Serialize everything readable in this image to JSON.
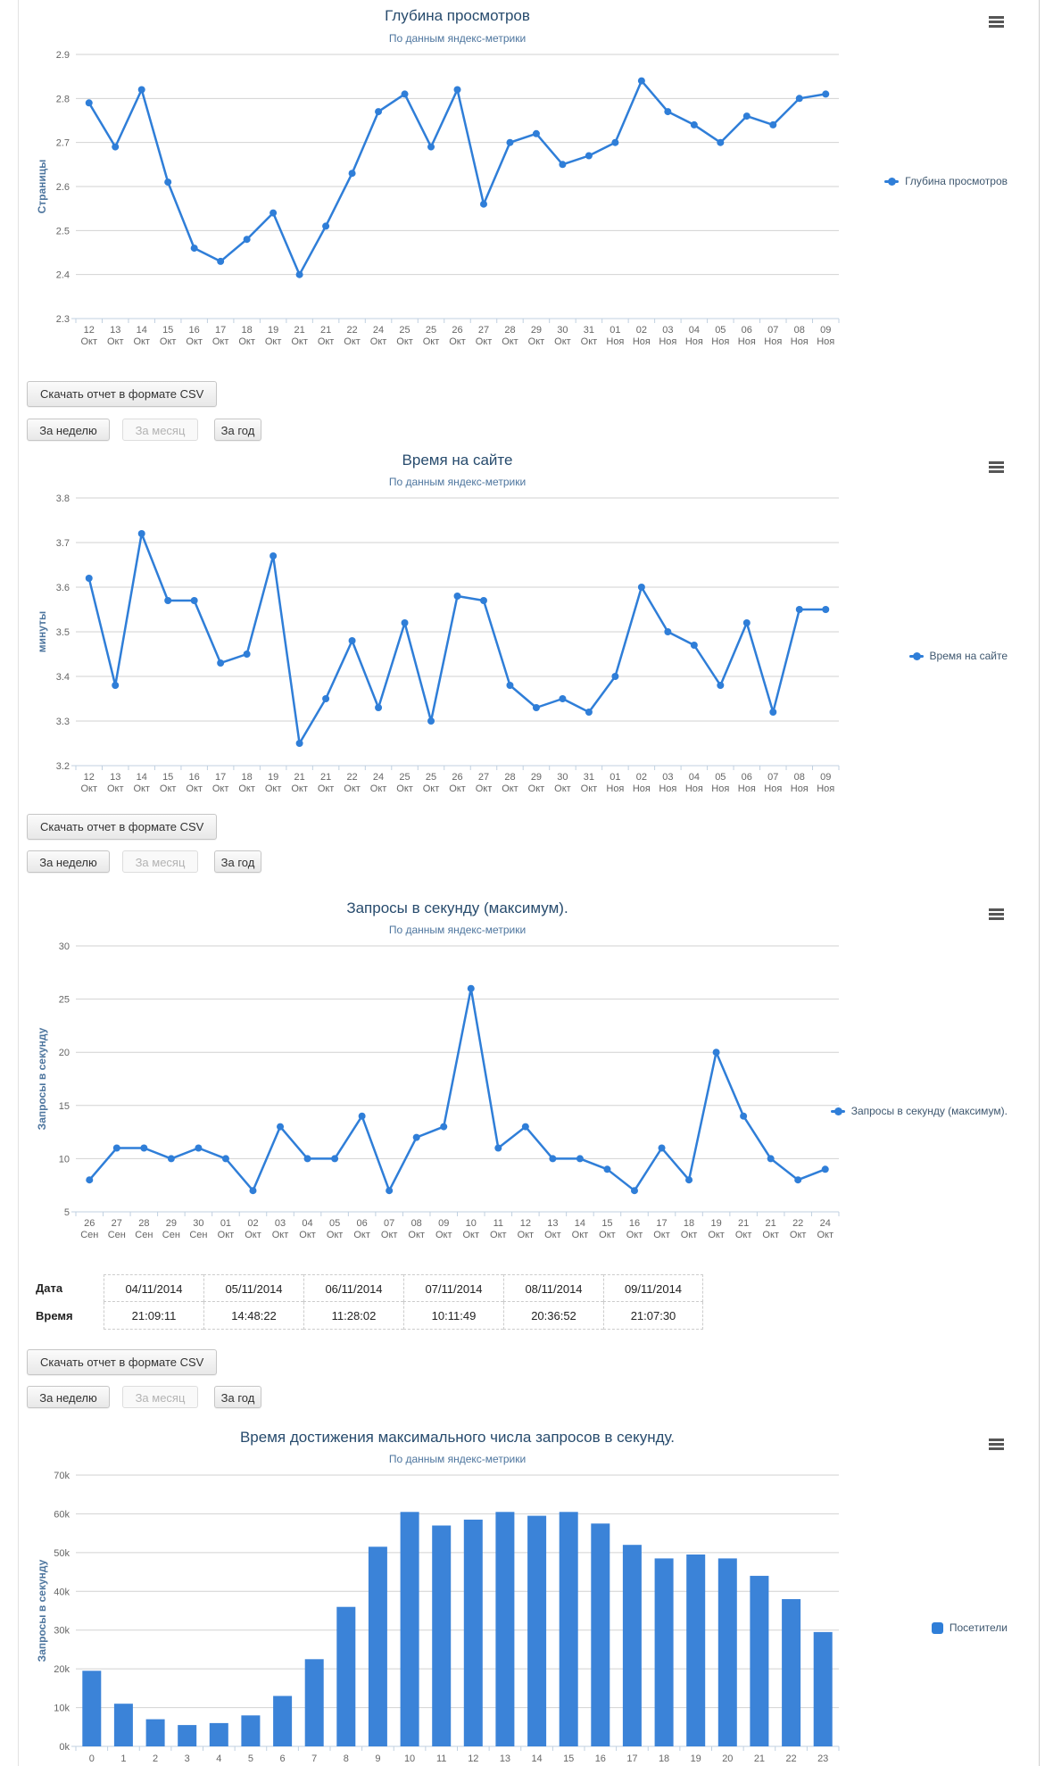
{
  "colors": {
    "series_line": "#2f7ed8",
    "series_bar": "#3b83d8",
    "grid": "#d2d2d2",
    "axis": "#c0d0e0",
    "tick_label": "#666666",
    "title": "#274b6d",
    "subtitle": "#4d759e",
    "legend_text": "#3e576f"
  },
  "icons": {
    "chart_menu": "hamburger-menu-icon",
    "line_legend_marker": "line-with-dot-marker-icon",
    "column_legend_marker": "rounded-square-marker-icon"
  },
  "buttons": {
    "csv": "Скачать отчет в формате CSV",
    "week": "За неделю",
    "month": "За месяц",
    "year": "За год"
  },
  "table": {
    "rows": [
      {
        "label": "Дата",
        "cells": [
          "04/11/2014",
          "05/11/2014",
          "06/11/2014",
          "07/11/2014",
          "08/11/2014",
          "09/11/2014"
        ]
      },
      {
        "label": "Время",
        "cells": [
          "21:09:11",
          "14:48:22",
          "11:28:02",
          "10:11:49",
          "20:36:52",
          "21:07:30"
        ]
      }
    ]
  },
  "chart_data": [
    {
      "type": "line",
      "title": "Глубина просмотров",
      "subtitle": "По данным яндекс-метрики",
      "y_axis_title": "Страницы",
      "legend_label": "Глубина просмотров",
      "y_min": 2.3,
      "y_max": 2.9,
      "y_tick_labels": [
        "2.9",
        "2.8",
        "2.7",
        "2.6",
        "2.5",
        "2.4",
        "2.3"
      ],
      "grid": true,
      "legend_position": "right",
      "categories": [
        "12 Окт",
        "13 Окт",
        "14 Окт",
        "15 Окт",
        "16 Окт",
        "17 Окт",
        "18 Окт",
        "19 Окт",
        "21 Окт",
        "21 Окт",
        "22 Окт",
        "24 Окт",
        "25 Окт",
        "25 Окт",
        "26 Окт",
        "27 Окт",
        "28 Окт",
        "29 Окт",
        "30 Окт",
        "31 Окт",
        "01 Ноя",
        "02 Ноя",
        "03 Ноя",
        "04 Ноя",
        "05 Ноя",
        "06 Ноя",
        "07 Ноя",
        "08 Ноя",
        "09 Ноя"
      ],
      "values": [
        2.79,
        2.69,
        2.82,
        2.61,
        2.46,
        2.43,
        2.48,
        2.54,
        2.4,
        2.51,
        2.63,
        2.77,
        2.81,
        2.69,
        2.82,
        2.56,
        2.7,
        2.72,
        2.65,
        2.67,
        2.7,
        2.84,
        2.77,
        2.74,
        2.7,
        2.76,
        2.74,
        2.8,
        2.81
      ]
    },
    {
      "type": "line",
      "title": "Время на сайте",
      "subtitle": "По данным яндекс-метрики",
      "y_axis_title": "минуты",
      "legend_label": "Время на сайте",
      "y_min": 3.2,
      "y_max": 3.8,
      "y_tick_labels": [
        "3.8",
        "3.7",
        "3.6",
        "3.5",
        "3.4",
        "3.3",
        "3.2"
      ],
      "grid": true,
      "legend_position": "right",
      "categories": [
        "12 Окт",
        "13 Окт",
        "14 Окт",
        "15 Окт",
        "16 Окт",
        "17 Окт",
        "18 Окт",
        "19 Окт",
        "21 Окт",
        "21 Окт",
        "22 Окт",
        "24 Окт",
        "25 Окт",
        "25 Окт",
        "26 Окт",
        "27 Окт",
        "28 Окт",
        "29 Окт",
        "30 Окт",
        "31 Окт",
        "01 Ноя",
        "02 Ноя",
        "03 Ноя",
        "04 Ноя",
        "05 Ноя",
        "06 Ноя",
        "07 Ноя",
        "08 Ноя",
        "09 Ноя"
      ],
      "values": [
        3.62,
        3.38,
        3.72,
        3.57,
        3.57,
        3.43,
        3.45,
        3.67,
        3.25,
        3.35,
        3.48,
        3.33,
        3.52,
        3.3,
        3.58,
        3.57,
        3.38,
        3.33,
        3.35,
        3.32,
        3.4,
        3.6,
        3.5,
        3.47,
        3.38,
        3.52,
        3.32,
        3.55,
        3.55
      ]
    },
    {
      "type": "line",
      "title": "Запросы в секунду (максимум).",
      "subtitle": "По данным яндекс-метрики",
      "y_axis_title": "Запросы в секунду",
      "legend_label": "Запросы в секунду (максимум).",
      "y_min": 5,
      "y_max": 30,
      "y_tick_labels": [
        "30",
        "25",
        "20",
        "15",
        "10",
        "5"
      ],
      "grid": true,
      "legend_position": "right",
      "categories": [
        "26 Сен",
        "27 Сен",
        "28 Сен",
        "29 Сен",
        "30 Сен",
        "01 Окт",
        "02 Окт",
        "03 Окт",
        "04 Окт",
        "05 Окт",
        "06 Окт",
        "07 Окт",
        "08 Окт",
        "09 Окт",
        "10 Окт",
        "11 Окт",
        "12 Окт",
        "13 Окт",
        "14 Окт",
        "15 Окт",
        "16 Окт",
        "17 Окт",
        "18 Окт",
        "19 Окт",
        "21 Окт",
        "21 Окт",
        "22 Окт",
        "24 Окт"
      ],
      "values": [
        8,
        11,
        11,
        10,
        11,
        10,
        7,
        13,
        10,
        10,
        14,
        7,
        12,
        13,
        26,
        11,
        13,
        10,
        10,
        9,
        7,
        11,
        8,
        20,
        14,
        10,
        8,
        9
      ]
    },
    {
      "type": "bar",
      "title": "Время достижения максимального числа запросов в секунду.",
      "subtitle": "По данным яндекс-метрики",
      "y_axis_title": "Запросы в секунду",
      "legend_label": "Посетители",
      "y_min": 0,
      "y_max": 70000,
      "y_tick_labels": [
        "70k",
        "60k",
        "50k",
        "40k",
        "30k",
        "20k",
        "10k",
        "0k"
      ],
      "grid": true,
      "legend_position": "right",
      "categories": [
        "0",
        "1",
        "2",
        "3",
        "4",
        "5",
        "6",
        "7",
        "8",
        "9",
        "10",
        "11",
        "12",
        "13",
        "14",
        "15",
        "16",
        "17",
        "18",
        "19",
        "20",
        "21",
        "22",
        "23"
      ],
      "values": [
        19500,
        11000,
        7000,
        5500,
        6000,
        8000,
        13000,
        22500,
        36000,
        51500,
        60500,
        57000,
        58500,
        60500,
        59500,
        60500,
        57500,
        52000,
        48500,
        49500,
        48500,
        44000,
        38000,
        29500
      ]
    }
  ]
}
